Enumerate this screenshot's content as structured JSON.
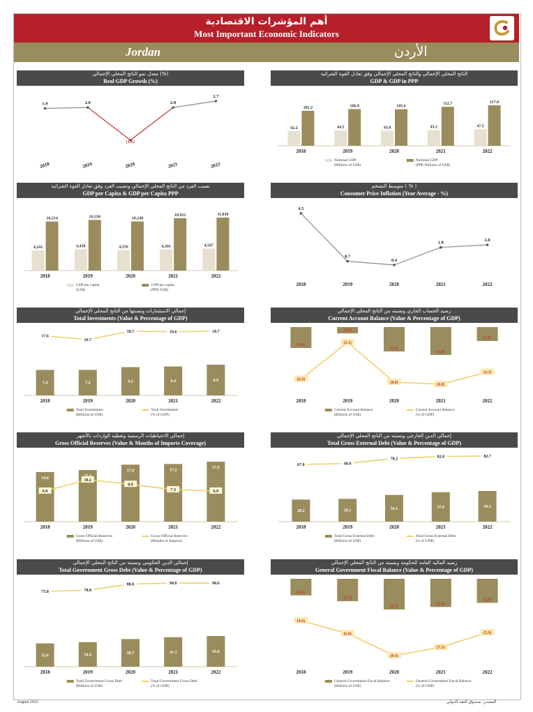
{
  "header": {
    "title_ar": "أهم المؤشرات الاقتصادية",
    "title_en": "Most Important Economic Indicators",
    "country_en": "Jordan",
    "country_ar": "الأردن"
  },
  "colors": {
    "banner": "#b5202a",
    "band": "#9a8c5d",
    "panel_header": "#4a4a4a",
    "bar_dark": "#9a8c5d",
    "bar_light": "#e6e0cf",
    "line_gold": "#efcf6a",
    "line_grey": "#8a8a8a",
    "negative_label": "#c0392b"
  },
  "chart_data": [
    {
      "id": "real-gdp-growth",
      "type": "line",
      "title_ar": "معدل نمو الناتج المحلي الإجمالي (%)",
      "title": "Real GDP Growth (%)",
      "categories": [
        "2018",
        "2019",
        "2020",
        "2021",
        "2022"
      ],
      "series": [
        {
          "values": [
            1.9,
            2.0,
            -1.6,
            2.0,
            2.7
          ],
          "labels": [
            "1.9",
            "2.0",
            "(1.6)",
            "2.0",
            "2.7"
          ]
        }
      ]
    },
    {
      "id": "gdp-ppp",
      "type": "bar",
      "title_ar": "الناتج المحلي الإجمالي والناتج المحلي الإجمالي وفق تعادل القوة الشرائية",
      "title": "GDP & GDP in PPP",
      "categories": [
        "2018",
        "2019",
        "2020",
        "2021",
        "2022"
      ],
      "series": [
        {
          "name": "Nominal GDP (Billions of US$)",
          "values": [
            42.2,
            44.5,
            43.8,
            45.2,
            47.5
          ]
        },
        {
          "name": "Nominal GDP (PPP, Billions of US$)",
          "values": [
            101.2,
            106.0,
            105.6,
            112.7,
            117.0
          ]
        }
      ],
      "legend": [
        [
          "Nominal GDP",
          "(Billions of US$)"
        ],
        [
          "Nominal GDP",
          "(PPP, Billions of US$)"
        ]
      ]
    },
    {
      "id": "gdp-per-capita",
      "type": "bar",
      "title_ar": "نصيب الفرد من الناتج المحلي الإجمالي ونصيب الفرد وفق تعادل القوة الشرائية",
      "title": "GDP per Capita & GDP per Capita PPP",
      "categories": [
        "2018",
        "2019",
        "2020",
        "2021",
        "2022"
      ],
      "series": [
        {
          "name": "GDP per capita (US$)",
          "values": [
            4241,
            4438,
            4256,
            4391,
            4567
          ]
        },
        {
          "name": "GDP per capita (PPP, US$)",
          "values": [
            10214,
            10550,
            10240,
            10921,
            11036
          ]
        }
      ],
      "value_labels": [
        [
          "4,241",
          "4,438",
          "4,256",
          "4,391",
          "4,567"
        ],
        [
          "10,214",
          "10,550",
          "10,240",
          "10,921",
          "11,036"
        ]
      ],
      "legend": [
        [
          "GDP per capita",
          "(US$)"
        ],
        [
          "GDP per capita",
          "(PPP, US$)"
        ]
      ]
    },
    {
      "id": "cpi-inflation",
      "type": "line",
      "title_ar": "متوسط التضخم ( % )",
      "title": "Consumer Price Inflation (Year Average - %)",
      "categories": [
        "2018",
        "2019",
        "2020",
        "2021",
        "2022"
      ],
      "series": [
        {
          "values": [
            4.5,
            0.7,
            0.4,
            1.8,
            2.0
          ],
          "labels": [
            "4.5",
            "0.7",
            "0.4",
            "1.8",
            "2.0"
          ]
        }
      ]
    },
    {
      "id": "total-investment",
      "type": "bar",
      "title_ar": "إجمالي الاستثمارات ونسبتها من الناتج المحلي الإجمالي",
      "title": "Total Investments (Value & Percentage of GDP)",
      "categories": [
        "2018",
        "2019",
        "2020",
        "2021",
        "2022"
      ],
      "series": [
        {
          "name": "Total Investments (Billions of US$)",
          "values": [
            7.4,
            7.4,
            8.2,
            8.4,
            8.9
          ]
        },
        {
          "name": "Total Investments (% of GDP)",
          "values": [
            17.6,
            16.7,
            18.7,
            18.6,
            18.7
          ]
        }
      ],
      "legend": [
        [
          "Total Investments",
          "(Billions of US$)"
        ],
        [
          "Total Investments",
          "(% of GDP)"
        ]
      ]
    },
    {
      "id": "current-account",
      "type": "bar",
      "title_ar": "رصيد الحساب الجاري ونسبته من الناتج المحلي الإجمالي",
      "title": "Current Account Balance (Value & Percentage of GDP)",
      "categories": [
        "2018",
        "2019",
        "2020",
        "2021",
        "2022"
      ],
      "series": [
        {
          "name": "Current Account Balance (Billions of US$)",
          "values": [
            -3.0,
            -0.9,
            -3.5,
            -4.0,
            -2.0
          ],
          "labels": [
            "(3.0)",
            "(0.9)",
            "(3.5)",
            "(4.0)",
            "(2.0)"
          ]
        },
        {
          "name": "Current Account Balance (% of GDP)",
          "values": [
            -6.9,
            -2.1,
            -8.0,
            -8.8,
            -4.3
          ],
          "labels": [
            "(6.9)",
            "(2.1)",
            "(8.0)",
            "(8.8)",
            "(4.3)"
          ]
        }
      ],
      "legend": [
        [
          "Current Account Balance",
          "(Billions of US$)"
        ],
        [
          "Current Account Balance",
          "(% of GDP)"
        ]
      ]
    },
    {
      "id": "official-reserves",
      "type": "bar",
      "title_ar": "إجمالي الاحتياطيات الرسمية وتغطية الواردات بالأشهر",
      "title": "Gross Official Reserves (Value & Months of Imports Coverage)",
      "categories": [
        "2018",
        "2019",
        "2020",
        "2021",
        "2022"
      ],
      "series": [
        {
          "name": "Gross Official Reserves (Billions of US$)",
          "values": [
            14.8,
            15.4,
            17.0,
            17.2,
            17.9
          ]
        },
        {
          "name": "Gross Official Reserves (Months of Imports)",
          "values": [
            6.9,
            10.2,
            8.9,
            7.3,
            6.9
          ]
        }
      ],
      "legend": [
        [
          "Gross Official Reserves",
          "(Billions of US$)"
        ],
        [
          "Gross Official Reserves",
          "(Months of Imports)"
        ]
      ]
    },
    {
      "id": "external-debt",
      "type": "bar",
      "title_ar": "إجمالي الدين الخارجي ونسبته من الناتج المحلي الإجمالي",
      "title": "Total Gross External Debt (Value & Percentage of GDP)",
      "categories": [
        "2018",
        "2019",
        "2020",
        "2021",
        "2022"
      ],
      "series": [
        {
          "name": "Total Gross External Debt (Billions of US$)",
          "values": [
            28.2,
            29.1,
            34.1,
            37.6,
            39.2
          ]
        },
        {
          "name": "Total Gross External Debt (% of GDP)",
          "values": [
            67.0,
            68.8,
            78.2,
            82.0,
            82.7
          ]
        }
      ],
      "legend": [
        [
          "Total Gross External Debt",
          "(Billions of US$)"
        ],
        [
          "Total Gross External Debt",
          "(% of GDP)"
        ]
      ]
    },
    {
      "id": "government-debt",
      "type": "bar",
      "title_ar": "إجمالي الدين الحكومي ونسبته من الناتج المحلي الإجمالي",
      "title": "Total Government Gross Debt (Value & Percentage of GDP)",
      "categories": [
        "2018",
        "2019",
        "2020",
        "2021",
        "2022"
      ],
      "series": [
        {
          "name": "Total Government Gross Debt (Billions of US$)",
          "values": [
            32.6,
            34.4,
            38.7,
            41.3,
            43.0
          ]
        },
        {
          "name": "Total Government Gross Debt (% of GDP)",
          "values": [
            75.8,
            78.0,
            88.8,
            90.8,
            90.6
          ]
        }
      ],
      "legend": [
        [
          "Total Government Gross Debt",
          "(Billions of US$)"
        ],
        [
          "Total Government Gross Debt",
          "(% of GDP)"
        ]
      ]
    },
    {
      "id": "fiscal-balance",
      "type": "bar",
      "title_ar": "رصيد المالية العامة للحكومة ونسبته من الناتج المحلي الإجمالي",
      "title": "General Government Fiscal Balance (Value & Percentage of GDP)",
      "categories": [
        "2018",
        "2019",
        "2020",
        "2021",
        "2022"
      ],
      "series": [
        {
          "name": "General Government Fiscal Balance (Billions of US$)",
          "values": [
            -2.0,
            -2.7,
            -3.7,
            -3.4,
            -2.9
          ],
          "labels": [
            "(2.0)",
            "(2.7)",
            "(3.7)",
            "(3.4)",
            "(2.9)"
          ]
        },
        {
          "name": "General Government Fiscal Balance (% of GDP)",
          "values": [
            -4.6,
            -6.0,
            -8.4,
            -7.5,
            -5.9
          ],
          "labels": [
            "(4.6)",
            "(6.0)",
            "(8.4)",
            "(7.5)",
            "(5.9)"
          ]
        }
      ],
      "legend": [
        [
          "General Government Fiscal Balance",
          "(Billions of US$)"
        ],
        [
          "General Government Fiscal Balance",
          "(% of GDP)"
        ]
      ]
    }
  ],
  "footer": {
    "left": "August 2022",
    "right": "المصدر: صندوق النقد الدولي"
  }
}
